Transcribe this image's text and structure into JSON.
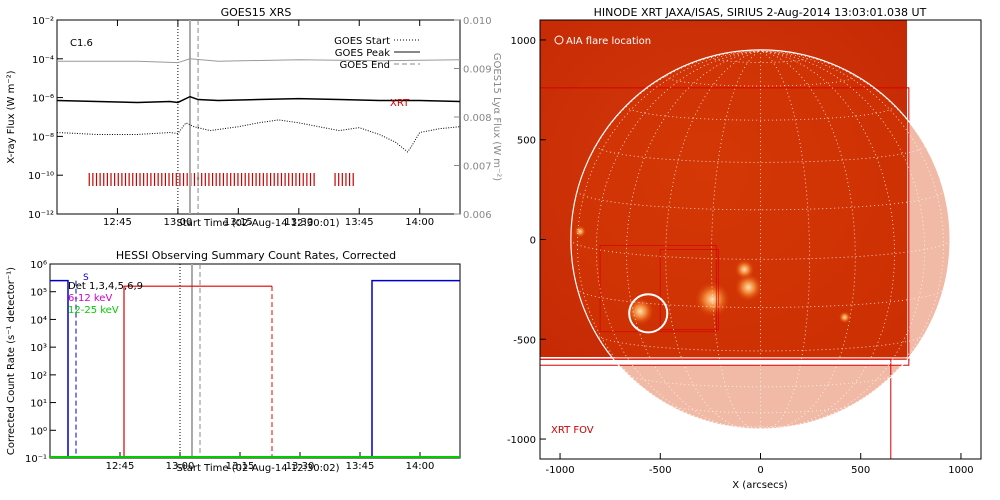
{
  "colors": {
    "frame": "#000000",
    "goes_long": "#000000",
    "goes_short": "#000000",
    "goes_lya": "#999999",
    "xrt_marks": "#cc0000",
    "peak_line": "#aaaaaa",
    "start_line": "#888888",
    "rhessi_blue": "#0000cc",
    "rhessi_red": "#dd0000",
    "rhessi_green": "#00cc00",
    "label_purple": "#cc00cc",
    "sun_dark": "#b81400",
    "sun_mid": "#d63a00",
    "sun_bright": "#ffb070"
  },
  "chart_data": [
    {
      "type": "line",
      "title": "GOES15 XRS",
      "xlabel": "Start Time (02-Aug-14 12:30:01)",
      "ylabel": "X-ray Flux (W m⁻²)",
      "ylabel_right": "GOES15 Lyα Flux (W m⁻²)",
      "xlim_minutes": [
        0,
        100
      ],
      "x_ticks": [
        "12:45",
        "13:00",
        "13:15",
        "13:30",
        "13:45",
        "14:00"
      ],
      "ylim_log": [
        -12,
        -2
      ],
      "y_ticks": [
        "10⁻¹²",
        "10⁻¹⁰",
        "10⁻⁸",
        "10⁻⁶",
        "10⁻⁴",
        "10⁻²"
      ],
      "y2lim": [
        0.006,
        0.01
      ],
      "y2_ticks": [
        "0.006",
        "0.007",
        "0.008",
        "0.009",
        "0.010"
      ],
      "class_label": "C1.6",
      "legend": [
        "GOES Start",
        "GOES Peak",
        "GOES End"
      ],
      "xrt_label": "XRT",
      "events_min": {
        "start": 30,
        "peak": 33,
        "end": 35
      },
      "series": [
        {
          "name": "GOES long (1-8 Å)",
          "x": [
            0,
            10,
            20,
            28,
            30,
            33,
            35,
            40,
            50,
            60,
            70,
            80,
            90,
            100
          ],
          "log_values": [
            -6.15,
            -6.2,
            -6.25,
            -6.2,
            -6.25,
            -5.95,
            -6.1,
            -6.15,
            -6.1,
            -6.05,
            -6.1,
            -6.15,
            -6.15,
            -6.2
          ]
        },
        {
          "name": "GOES short (0.5-4 Å)",
          "x": [
            0,
            10,
            20,
            28,
            30,
            32,
            34,
            38,
            45,
            50,
            55,
            60,
            65,
            70,
            75,
            80,
            84,
            87,
            88,
            90,
            95,
            100
          ],
          "log_values": [
            -7.8,
            -7.9,
            -7.9,
            -7.8,
            -7.85,
            -7.3,
            -7.5,
            -7.7,
            -7.5,
            -7.3,
            -7.15,
            -7.3,
            -7.5,
            -7.7,
            -7.55,
            -7.9,
            -8.3,
            -8.8,
            -8.5,
            -7.8,
            -7.6,
            -7.5
          ]
        },
        {
          "name": "GOES15 Lyα",
          "x": [
            0,
            20,
            30,
            33,
            40,
            60,
            80,
            100
          ],
          "values": [
            0.00915,
            0.00915,
            0.00912,
            0.0092,
            0.00915,
            0.00918,
            0.00916,
            0.00918
          ]
        }
      ],
      "xrt_obs_min": [
        [
          8,
          64
        ],
        [
          69,
          74
        ]
      ]
    },
    {
      "type": "line",
      "title": "HESSI Observing Summary Count Rates, Corrected",
      "xlabel": "Start Time (02-Aug-14 12:30:02)",
      "ylabel": "Corrected Count Rate (s⁻¹ detector⁻¹)",
      "xlim_minutes": [
        0,
        100
      ],
      "x_ticks": [
        "12:45",
        "13:00",
        "13:15",
        "13:30",
        "13:45",
        "14:00"
      ],
      "ylim_log": [
        -1,
        6
      ],
      "y_ticks": [
        "10⁻¹",
        "10⁰",
        "10¹",
        "10²",
        "10³",
        "10⁴",
        "10⁵",
        "10⁶"
      ],
      "legend": [
        "S",
        "Det 1,3,4,5,6,9",
        "6-12 keV",
        "12-25 keV"
      ],
      "events_min": {
        "start": 30,
        "peak": 33,
        "end": 35
      },
      "series": [
        {
          "name": "6-12 keV",
          "x": [
            0,
            4,
            16,
            53,
            77,
            100
          ],
          "log_values": [
            5.4,
            5.4,
            5.2,
            5.2,
            5.4,
            5.4
          ]
        },
        {
          "name": "12-25 keV",
          "x": [
            0,
            100
          ],
          "log_values": [
            -1,
            -1
          ]
        }
      ],
      "markers_dashed_min": [
        5,
        53
      ]
    },
    {
      "type": "heatmap",
      "title": "HINODE XRT JAXA/ISAS, SIRIUS  2-Aug-2014 13:03:01.038 UT",
      "xlabel": "X (arcsecs)",
      "ylabel": "Y (arcsecs)",
      "xlim": [
        -1100,
        1100
      ],
      "ylim": [
        -1100,
        1100
      ],
      "x_ticks": [
        "-1000",
        "-500",
        "0",
        "500",
        "1000"
      ],
      "y_ticks": [
        "-1000",
        "-500",
        "0",
        "500",
        "1000"
      ],
      "legend_label": "AIA flare location",
      "fov_label": "XRT FOV",
      "flare_location": [
        -560,
        -370
      ],
      "sun_radius": 946
    }
  ]
}
